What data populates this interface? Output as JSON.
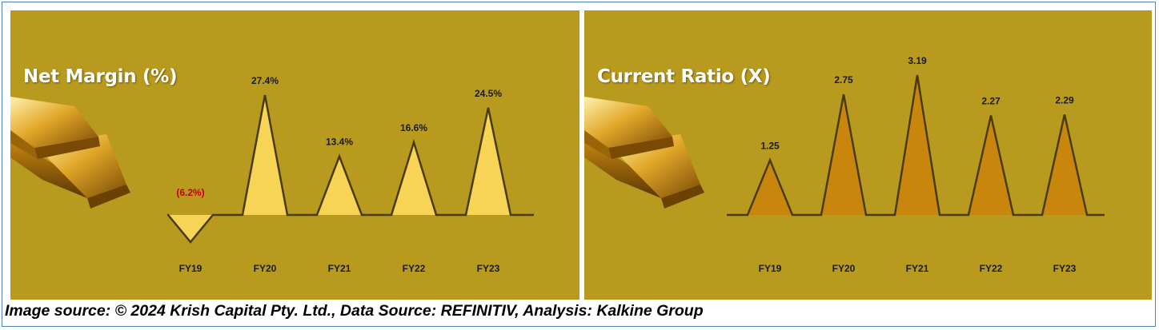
{
  "colors": {
    "panel_bg": "#b89b1e",
    "peak_stroke": "#4a3a10",
    "net_margin_fill": "#f7d356",
    "current_ratio_fill": "#c8860c",
    "negative_label": "#c00000",
    "bar_gold_light": "#f4d567",
    "bar_gold_dark": "#8a5a05"
  },
  "caption": "Image source: © 2024 Krish Capital Pty. Ltd., Data Source: REFINITIV, Analysis: Kalkine Group",
  "chart_data": [
    {
      "type": "area",
      "title": "Net Margin (%)",
      "categories": [
        "FY19",
        "FY20",
        "FY21",
        "FY22",
        "FY23"
      ],
      "values": [
        -6.2,
        27.4,
        13.4,
        16.6,
        24.5
      ],
      "labels": [
        "(6.2%)",
        "27.4%",
        "13.4%",
        "16.6%",
        "24.5%"
      ],
      "style": "triangular peaks on baseline",
      "icon": "gold-bars-icon"
    },
    {
      "type": "area",
      "title": "Current Ratio (X)",
      "categories": [
        "FY19",
        "FY20",
        "FY21",
        "FY22",
        "FY23"
      ],
      "values": [
        1.25,
        2.75,
        3.19,
        2.27,
        2.29
      ],
      "labels": [
        "1.25",
        "2.75",
        "3.19",
        "2.27",
        "2.29"
      ],
      "style": "triangular peaks on baseline",
      "icon": "gold-bars-icon"
    }
  ]
}
